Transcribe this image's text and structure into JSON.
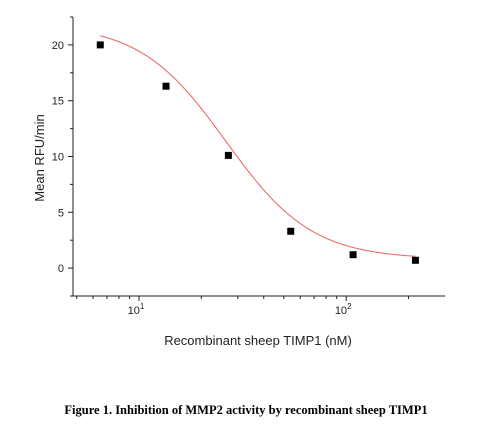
{
  "chart_data": {
    "type": "scatter",
    "xlabel": "Recombinant sheep TIMP1 (nM)",
    "ylabel": "Mean RFU/min",
    "x_scale": "log",
    "xlim": [
      4.8,
      300
    ],
    "ylim": [
      -2.5,
      22.5
    ],
    "x_tick_base": "10",
    "x_ticks": [
      {
        "value": 10,
        "exponent": "1"
      },
      {
        "value": 100,
        "exponent": "2"
      }
    ],
    "y_ticks": [
      0,
      5,
      10,
      15,
      20
    ],
    "series": [
      {
        "marker": "square",
        "color": "#000000",
        "x": [
          6.5,
          13.5,
          27,
          54,
          108,
          216
        ],
        "y": [
          20.0,
          16.3,
          10.1,
          3.3,
          1.2,
          0.7
        ]
      }
    ],
    "fit_curve": {
      "color": "#e8706c",
      "model": "four-parameter logistic",
      "top": 21.9,
      "bottom": 0.8,
      "ec50": 26.3,
      "hill": 2.09
    },
    "grid": false
  },
  "caption": "Figure 1. Inhibition of MMP2 activity by recombinant sheep TIMP1"
}
